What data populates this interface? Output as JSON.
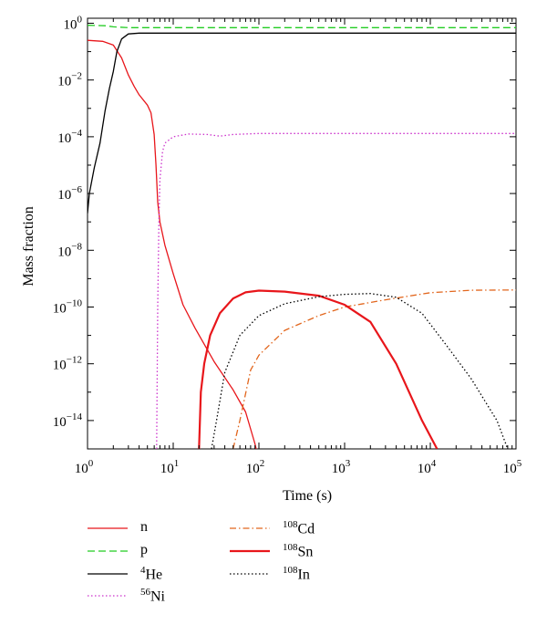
{
  "chart_data": {
    "type": "line",
    "xlabel": "Time (s)",
    "ylabel": "Mass fraction",
    "xscale": "log",
    "yscale": "log",
    "xlim": [
      1,
      100000
    ],
    "ylim": [
      1e-15,
      1.5
    ],
    "x_ticks": [
      {
        "value": 1,
        "base": "10",
        "exp": "0"
      },
      {
        "value": 10,
        "base": "10",
        "exp": "1"
      },
      {
        "value": 100,
        "base": "10",
        "exp": "2"
      },
      {
        "value": 1000,
        "base": "10",
        "exp": "3"
      },
      {
        "value": 10000,
        "base": "10",
        "exp": "4"
      },
      {
        "value": 100000,
        "base": "10",
        "exp": "5"
      }
    ],
    "y_ticks": [
      {
        "value": 1,
        "base": "10",
        "exp": "0"
      },
      {
        "value": 0.01,
        "base": "10",
        "exp": "−2"
      },
      {
        "value": 0.0001,
        "base": "10",
        "exp": "−4"
      },
      {
        "value": 1e-06,
        "base": "10",
        "exp": "−6"
      },
      {
        "value": 1e-08,
        "base": "10",
        "exp": "−8"
      },
      {
        "value": 1e-10,
        "base": "10",
        "exp": "−10"
      },
      {
        "value": 1e-12,
        "base": "10",
        "exp": "−12"
      },
      {
        "value": 1e-14,
        "base": "10",
        "exp": "−14"
      }
    ],
    "grid": false,
    "legend_position": "bottom",
    "series": [
      {
        "name": "n",
        "sup": "",
        "color": "#e8161b",
        "dash": "solid",
        "width": 1.3,
        "points": [
          [
            1,
            0.25
          ],
          [
            1.5,
            0.23
          ],
          [
            2,
            0.17
          ],
          [
            2.5,
            0.06
          ],
          [
            3,
            0.015
          ],
          [
            3.5,
            0.006
          ],
          [
            4,
            0.003
          ],
          [
            5,
            0.0013
          ],
          [
            5.5,
            0.0007
          ],
          [
            6,
            0.00012
          ],
          [
            6.3,
            1e-05
          ],
          [
            6.6,
            5e-07
          ],
          [
            7,
            1e-07
          ],
          [
            8,
            1.5e-08
          ],
          [
            10,
            1.5e-09
          ],
          [
            13,
            1.2e-10
          ],
          [
            18,
            1.8e-11
          ],
          [
            30,
            1.2e-12
          ],
          [
            50,
            1.2e-13
          ],
          [
            70,
            2e-14
          ],
          [
            90,
            1.5e-15
          ],
          [
            110,
            1e-16
          ]
        ]
      },
      {
        "name": "p",
        "sup": "",
        "color": "#22cc22",
        "dash": "dashed",
        "width": 1.3,
        "points": [
          [
            1,
            0.85
          ],
          [
            1.6,
            0.82
          ],
          [
            2,
            0.75
          ],
          [
            3,
            0.7
          ],
          [
            5,
            0.7
          ],
          [
            10,
            0.7
          ],
          [
            100000,
            0.7
          ]
        ]
      },
      {
        "name": "He",
        "sup": "4",
        "color": "#000000",
        "dash": "solid",
        "width": 1.3,
        "points": [
          [
            1,
            2e-07
          ],
          [
            1.05,
            1e-06
          ],
          [
            1.2,
            8e-06
          ],
          [
            1.4,
            6e-05
          ],
          [
            1.6,
            0.0008
          ],
          [
            1.8,
            0.005
          ],
          [
            2,
            0.02
          ],
          [
            2.2,
            0.1
          ],
          [
            2.5,
            0.28
          ],
          [
            3,
            0.42
          ],
          [
            4,
            0.45
          ],
          [
            10,
            0.45
          ],
          [
            100000,
            0.45
          ]
        ]
      },
      {
        "name": "Ni",
        "sup": "56",
        "color": "#cc33cc",
        "dash": "dotted",
        "width": 1.3,
        "points": [
          [
            6.4,
            1e-15
          ],
          [
            6.6,
            1e-10
          ],
          [
            6.8,
            1e-07
          ],
          [
            7,
            3e-06
          ],
          [
            7.5,
            3e-05
          ],
          [
            8,
            6e-05
          ],
          [
            10,
            0.0001
          ],
          [
            15,
            0.000125
          ],
          [
            25,
            0.00012
          ],
          [
            35,
            0.000105
          ],
          [
            50,
            0.00012
          ],
          [
            100,
            0.00013
          ],
          [
            1000,
            0.00013
          ],
          [
            100000,
            0.00013
          ]
        ]
      },
      {
        "name": "Cd",
        "sup": "108",
        "color": "#e2661d",
        "dash": "dashdot",
        "width": 1.3,
        "points": [
          [
            50,
            1e-15
          ],
          [
            60,
            1e-14
          ],
          [
            80,
            6e-13
          ],
          [
            100,
            2e-12
          ],
          [
            200,
            1.5e-11
          ],
          [
            500,
            5e-11
          ],
          [
            1000,
            1e-10
          ],
          [
            3000,
            1.8e-10
          ],
          [
            10000,
            3.2e-10
          ],
          [
            30000,
            3.9e-10
          ],
          [
            100000,
            4e-10
          ]
        ]
      },
      {
        "name": "Sn",
        "sup": "108",
        "color": "#e8161b",
        "dash": "solid",
        "width": 2.2,
        "points": [
          [
            20,
            1e-15
          ],
          [
            21,
            1e-13
          ],
          [
            23,
            1e-12
          ],
          [
            27,
            1e-11
          ],
          [
            35,
            6e-11
          ],
          [
            50,
            2e-10
          ],
          [
            70,
            3.3e-10
          ],
          [
            100,
            3.8e-10
          ],
          [
            200,
            3.5e-10
          ],
          [
            500,
            2.5e-10
          ],
          [
            1000,
            1.2e-10
          ],
          [
            2000,
            3e-11
          ],
          [
            4000,
            1e-12
          ],
          [
            8000,
            1e-14
          ],
          [
            12000,
            1e-15
          ]
        ]
      },
      {
        "name": "In",
        "sup": "108",
        "color": "#000000",
        "dash": "dotted",
        "width": 1.3,
        "points": [
          [
            28,
            1e-15
          ],
          [
            32,
            1e-14
          ],
          [
            40,
            5e-13
          ],
          [
            60,
            1e-11
          ],
          [
            100,
            5e-11
          ],
          [
            200,
            1.3e-10
          ],
          [
            500,
            2.3e-10
          ],
          [
            1000,
            2.8e-10
          ],
          [
            2000,
            3e-10
          ],
          [
            4000,
            2.2e-10
          ],
          [
            8000,
            6e-11
          ],
          [
            15000,
            5e-12
          ],
          [
            30000,
            3e-13
          ],
          [
            60000,
            1e-14
          ],
          [
            80000,
            1e-15
          ]
        ]
      }
    ]
  }
}
